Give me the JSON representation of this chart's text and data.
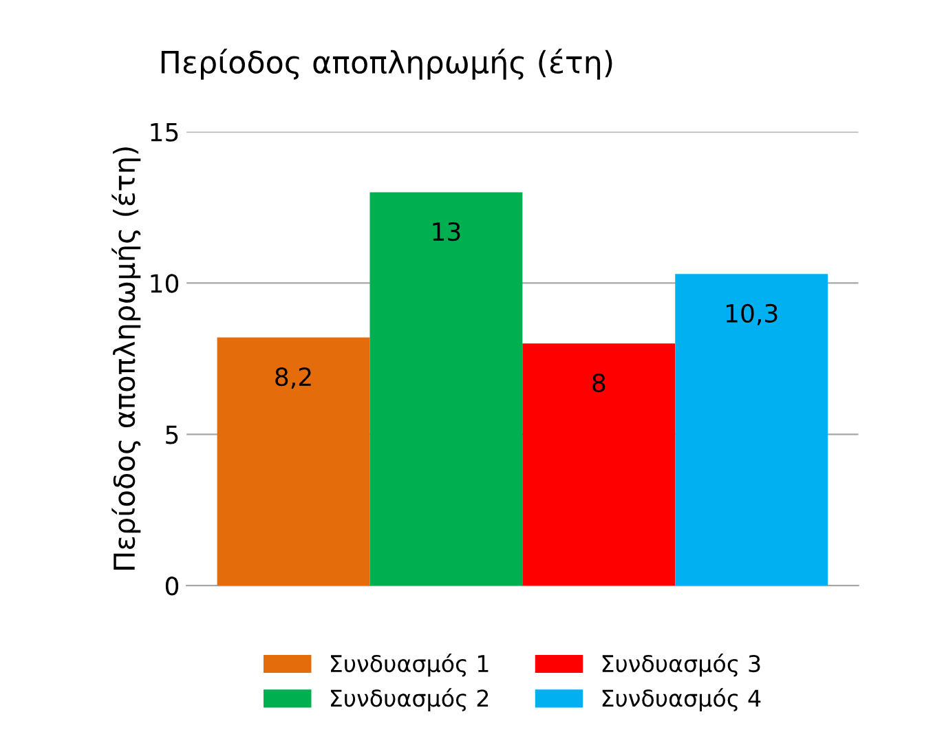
{
  "chart_data": {
    "type": "bar",
    "title": "Περίοδος αποπληρωμής (έτη)",
    "ylabel": "Περίοδος αποπληρωμής (έτη)",
    "categories": [
      null
    ],
    "series": [
      {
        "name": "Συνδυασμός 1",
        "color": "#e46c0a",
        "values": [
          8.2
        ],
        "value_labels": [
          "8,2"
        ]
      },
      {
        "name": "Συνδυασμός 2",
        "color": "#00b050",
        "values": [
          13
        ],
        "value_labels": [
          "13"
        ]
      },
      {
        "name": "Συνδυασμός 3",
        "color": "#ff0000",
        "values": [
          8
        ],
        "value_labels": [
          "8"
        ]
      },
      {
        "name": "Συνδυασμός 4",
        "color": "#00b0f0",
        "values": [
          10.3
        ],
        "value_labels": [
          "10,3"
        ]
      }
    ],
    "ylim": [
      0,
      15
    ],
    "yticks": [
      0,
      5,
      10,
      15
    ],
    "grid": "y",
    "legend": "bottom"
  }
}
